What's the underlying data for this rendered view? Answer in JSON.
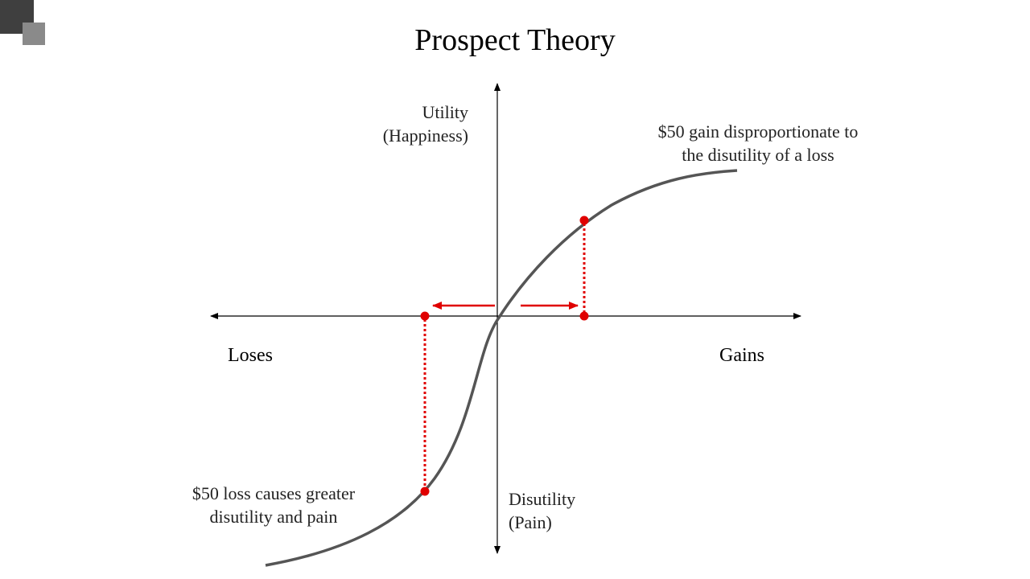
{
  "title": "Prospect Theory",
  "axes": {
    "utility": [
      "Utility",
      "(Happiness)"
    ],
    "disutility": [
      "Disutility",
      "(Pain)"
    ],
    "loses": "Loses",
    "gains": "Gains"
  },
  "annotations": {
    "gain": [
      "$50 gain disproportionate to",
      "the disutility of a loss"
    ],
    "loss": [
      "$50 loss causes greater",
      "disutility and pain"
    ]
  }
}
